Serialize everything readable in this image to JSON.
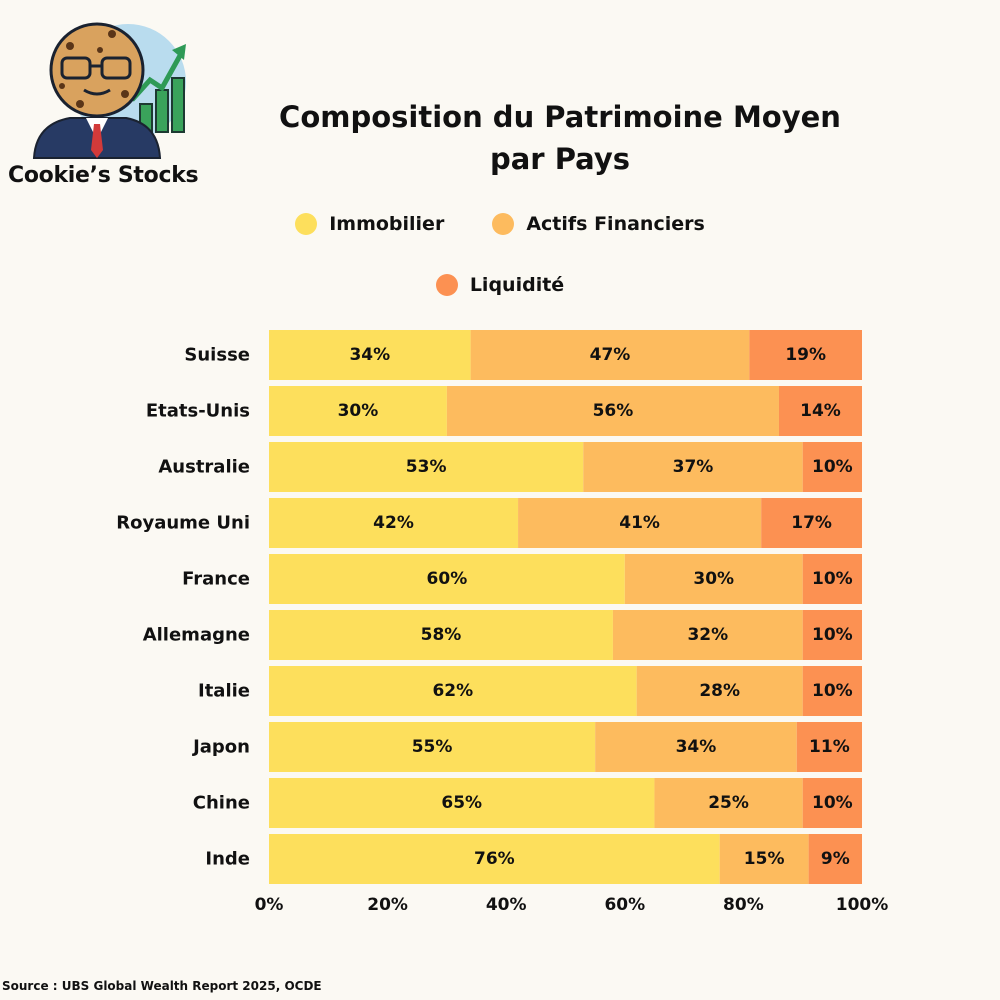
{
  "brand": {
    "name": "Cookie’s Stocks"
  },
  "source": "Source : UBS Global Wealth Report 2025, OCDE",
  "chart_data": {
    "type": "bar",
    "orientation": "horizontal",
    "stacked": true,
    "title_lines": [
      "Composition du Patrimoine Moyen",
      "par Pays"
    ],
    "categories": [
      "Suisse",
      "Etats-Unis",
      "Australie",
      "Royaume Uni",
      "France",
      "Allemagne",
      "Italie",
      "Japon",
      "Chine",
      "Inde"
    ],
    "series": [
      {
        "name": "Immobilier",
        "color": "#fddf5c",
        "values": [
          34,
          30,
          53,
          42,
          60,
          58,
          62,
          55,
          65,
          76
        ]
      },
      {
        "name": "Actifs Financiers",
        "color": "#fdbb5e",
        "values": [
          47,
          56,
          37,
          41,
          30,
          32,
          28,
          34,
          25,
          15
        ]
      },
      {
        "name": "Liquidité",
        "color": "#fc9152",
        "values": [
          19,
          14,
          10,
          17,
          10,
          10,
          10,
          11,
          10,
          9
        ]
      }
    ],
    "value_suffix": "%",
    "xlim": [
      0,
      100
    ],
    "xticks": [
      "0%",
      "20%",
      "40%",
      "60%",
      "80%",
      "100%"
    ],
    "legend_placement": "top-center",
    "grid": false
  }
}
